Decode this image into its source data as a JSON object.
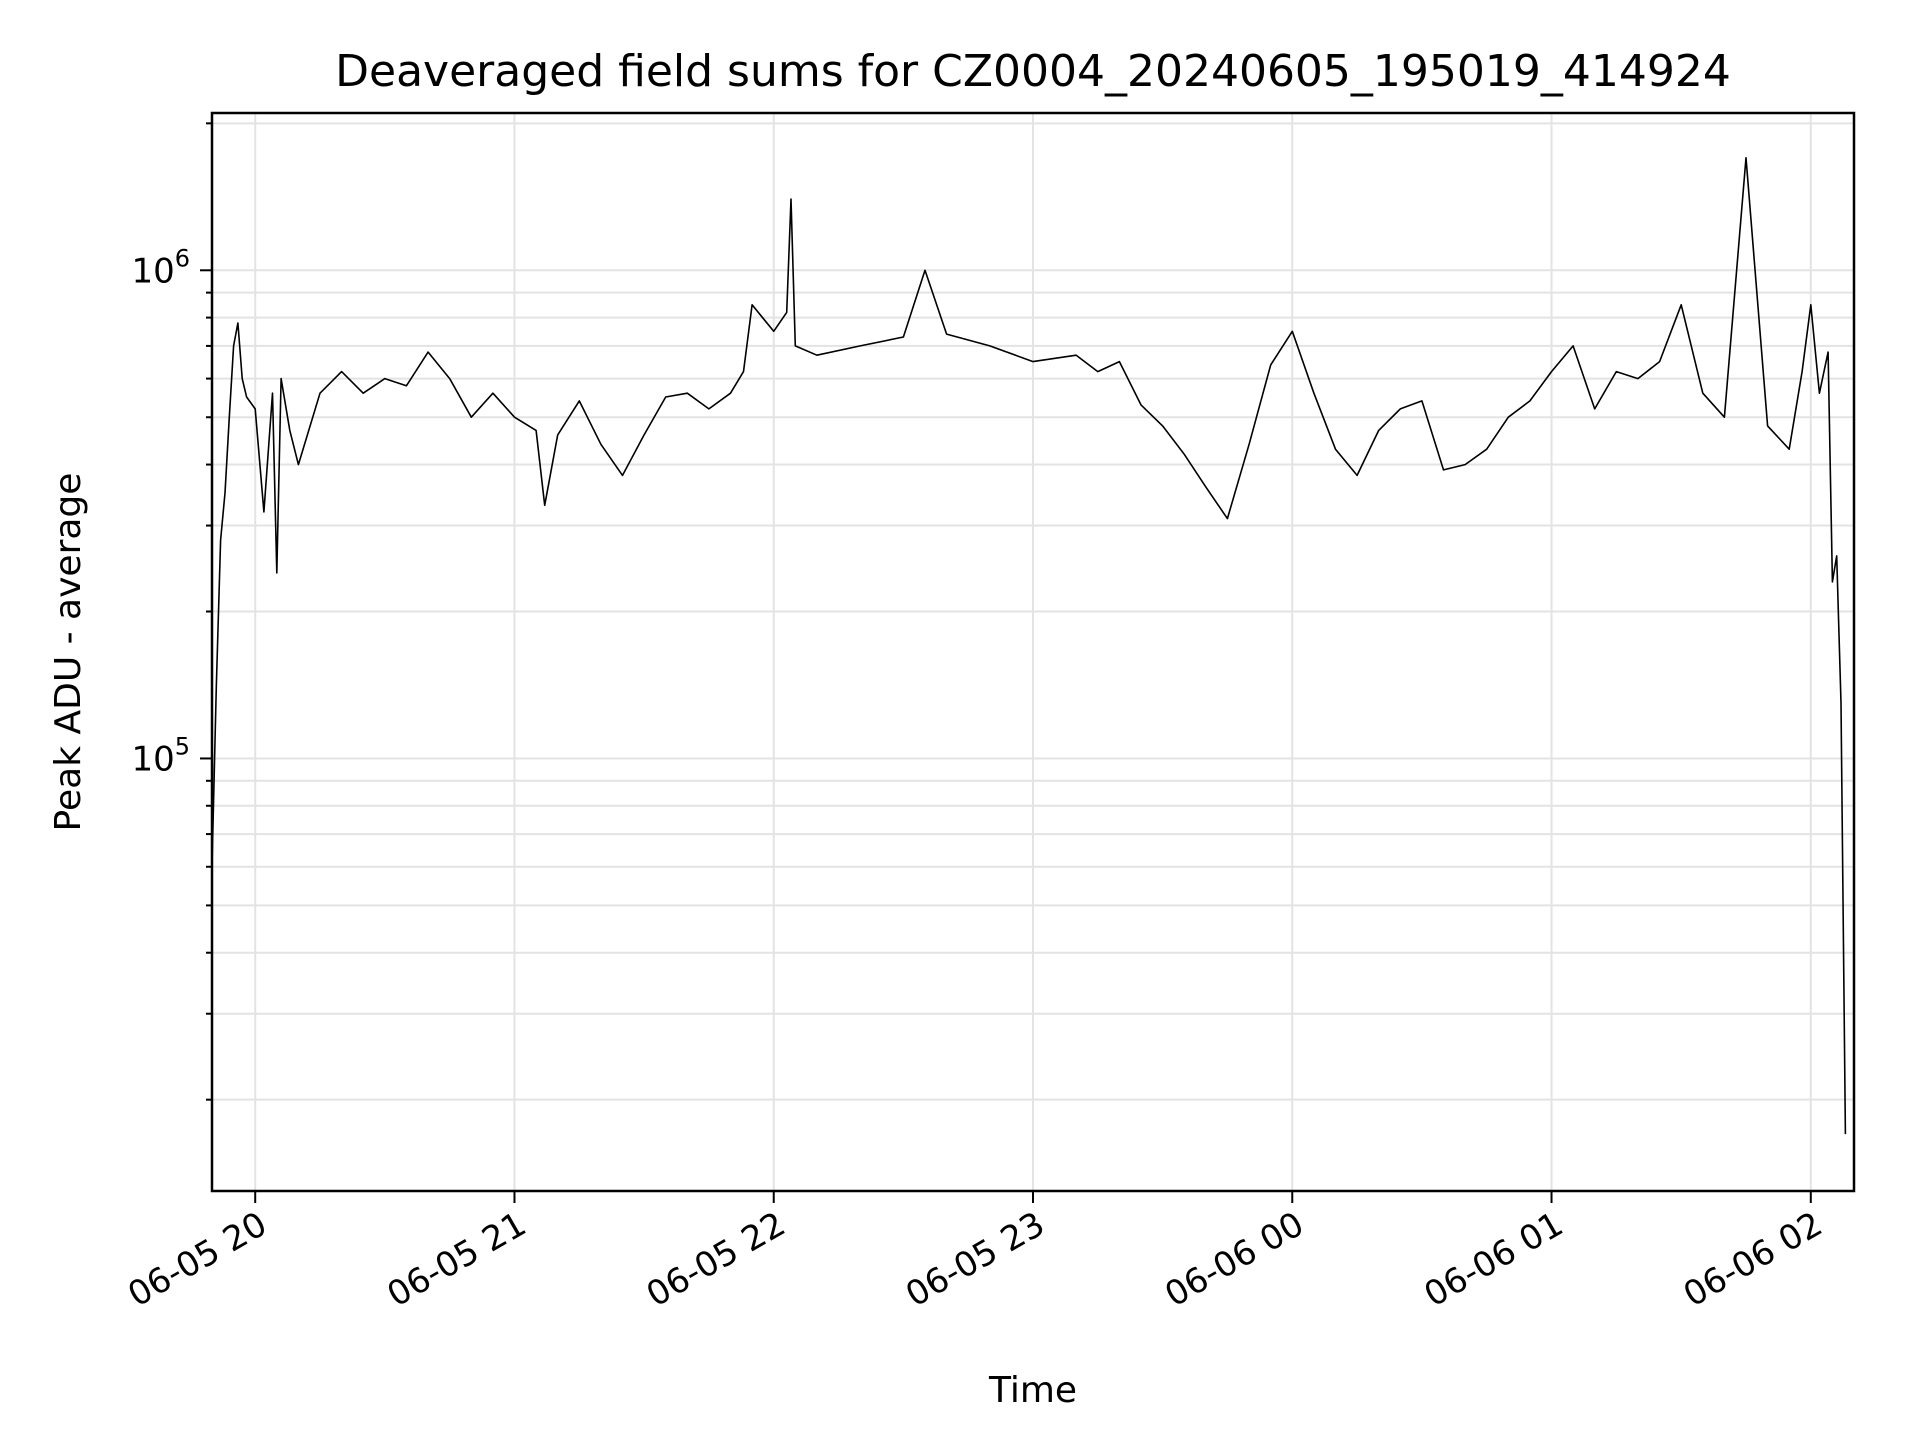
{
  "chart_data": {
    "type": "line",
    "title": "Deaveraged field sums for CZ0004_20240605_195019_414924",
    "xlabel": "Time",
    "ylabel": "Peak ADU - average",
    "xscale": "time",
    "yscale": "log",
    "xlim": [
      "2024-06-05 19:50",
      "2024-06-06 02:10"
    ],
    "ylim": [
      13000,
      2100000
    ],
    "grid": true,
    "line_color": "#000000",
    "x_ticks": [
      {
        "t": "2024-06-05 20:00",
        "label": "06-05 20"
      },
      {
        "t": "2024-06-05 21:00",
        "label": "06-05 21"
      },
      {
        "t": "2024-06-05 22:00",
        "label": "06-05 22"
      },
      {
        "t": "2024-06-05 23:00",
        "label": "06-05 23"
      },
      {
        "t": "2024-06-06 00:00",
        "label": "06-06 00"
      },
      {
        "t": "2024-06-06 01:00",
        "label": "06-06 01"
      },
      {
        "t": "2024-06-06 02:00",
        "label": "06-06 02"
      }
    ],
    "y_ticks": [
      {
        "value": 100000,
        "base": "10",
        "exp": "5"
      },
      {
        "value": 1000000,
        "base": "10",
        "exp": "6"
      }
    ],
    "series": [
      {
        "x": [
          "2024-06-05 19:50",
          "2024-06-05 19:51",
          "2024-06-05 19:52",
          "2024-06-05 19:53",
          "2024-06-05 19:54",
          "2024-06-05 19:55",
          "2024-06-05 19:56",
          "2024-06-05 19:57",
          "2024-06-05 19:58",
          "2024-06-05 20:00",
          "2024-06-05 20:02",
          "2024-06-05 20:04",
          "2024-06-05 20:05",
          "2024-06-05 20:06",
          "2024-06-05 20:08",
          "2024-06-05 20:10",
          "2024-06-05 20:15",
          "2024-06-05 20:20",
          "2024-06-05 20:25",
          "2024-06-05 20:30",
          "2024-06-05 20:35",
          "2024-06-05 20:40",
          "2024-06-05 20:45",
          "2024-06-05 20:50",
          "2024-06-05 20:55",
          "2024-06-05 21:00",
          "2024-06-05 21:05",
          "2024-06-05 21:07",
          "2024-06-05 21:10",
          "2024-06-05 21:15",
          "2024-06-05 21:20",
          "2024-06-05 21:25",
          "2024-06-05 21:30",
          "2024-06-05 21:35",
          "2024-06-05 21:40",
          "2024-06-05 21:45",
          "2024-06-05 21:50",
          "2024-06-05 21:53",
          "2024-06-05 21:55",
          "2024-06-05 22:00",
          "2024-06-05 22:03",
          "2024-06-05 22:04",
          "2024-06-05 22:05",
          "2024-06-05 22:10",
          "2024-06-05 22:20",
          "2024-06-05 22:30",
          "2024-06-05 22:35",
          "2024-06-05 22:40",
          "2024-06-05 22:50",
          "2024-06-05 23:00",
          "2024-06-05 23:10",
          "2024-06-05 23:15",
          "2024-06-05 23:20",
          "2024-06-05 23:25",
          "2024-06-05 23:30",
          "2024-06-05 23:35",
          "2024-06-05 23:40",
          "2024-06-05 23:45",
          "2024-06-05 23:50",
          "2024-06-05 23:55",
          "2024-06-06 00:00",
          "2024-06-06 00:05",
          "2024-06-06 00:10",
          "2024-06-06 00:15",
          "2024-06-06 00:20",
          "2024-06-06 00:25",
          "2024-06-06 00:30",
          "2024-06-06 00:35",
          "2024-06-06 00:40",
          "2024-06-06 00:45",
          "2024-06-06 00:50",
          "2024-06-06 00:55",
          "2024-06-06 01:00",
          "2024-06-06 01:05",
          "2024-06-06 01:10",
          "2024-06-06 01:15",
          "2024-06-06 01:20",
          "2024-06-06 01:25",
          "2024-06-06 01:30",
          "2024-06-06 01:35",
          "2024-06-06 01:40",
          "2024-06-06 01:45",
          "2024-06-06 01:50",
          "2024-06-06 01:55",
          "2024-06-06 01:58",
          "2024-06-06 02:00",
          "2024-06-06 02:02",
          "2024-06-06 02:04",
          "2024-06-06 02:05",
          "2024-06-06 02:06",
          "2024-06-06 02:07",
          "2024-06-06 02:08"
        ],
        "y": [
          60000,
          140000,
          280000,
          350000,
          500000,
          700000,
          780000,
          600000,
          550000,
          520000,
          320000,
          560000,
          240000,
          600000,
          470000,
          400000,
          560000,
          620000,
          560000,
          600000,
          580000,
          680000,
          600000,
          500000,
          560000,
          500000,
          470000,
          330000,
          460000,
          540000,
          440000,
          380000,
          460000,
          550000,
          560000,
          520000,
          560000,
          620000,
          850000,
          750000,
          820000,
          1400000,
          700000,
          670000,
          700000,
          730000,
          1000000,
          740000,
          700000,
          650000,
          670000,
          620000,
          650000,
          530000,
          480000,
          420000,
          360000,
          310000,
          440000,
          640000,
          750000,
          560000,
          430000,
          380000,
          470000,
          520000,
          540000,
          390000,
          400000,
          430000,
          500000,
          540000,
          620000,
          700000,
          520000,
          620000,
          600000,
          650000,
          850000,
          560000,
          500000,
          1700000,
          480000,
          430000,
          620000,
          850000,
          560000,
          680000,
          230000,
          260000,
          130000,
          17000
        ]
      }
    ]
  }
}
